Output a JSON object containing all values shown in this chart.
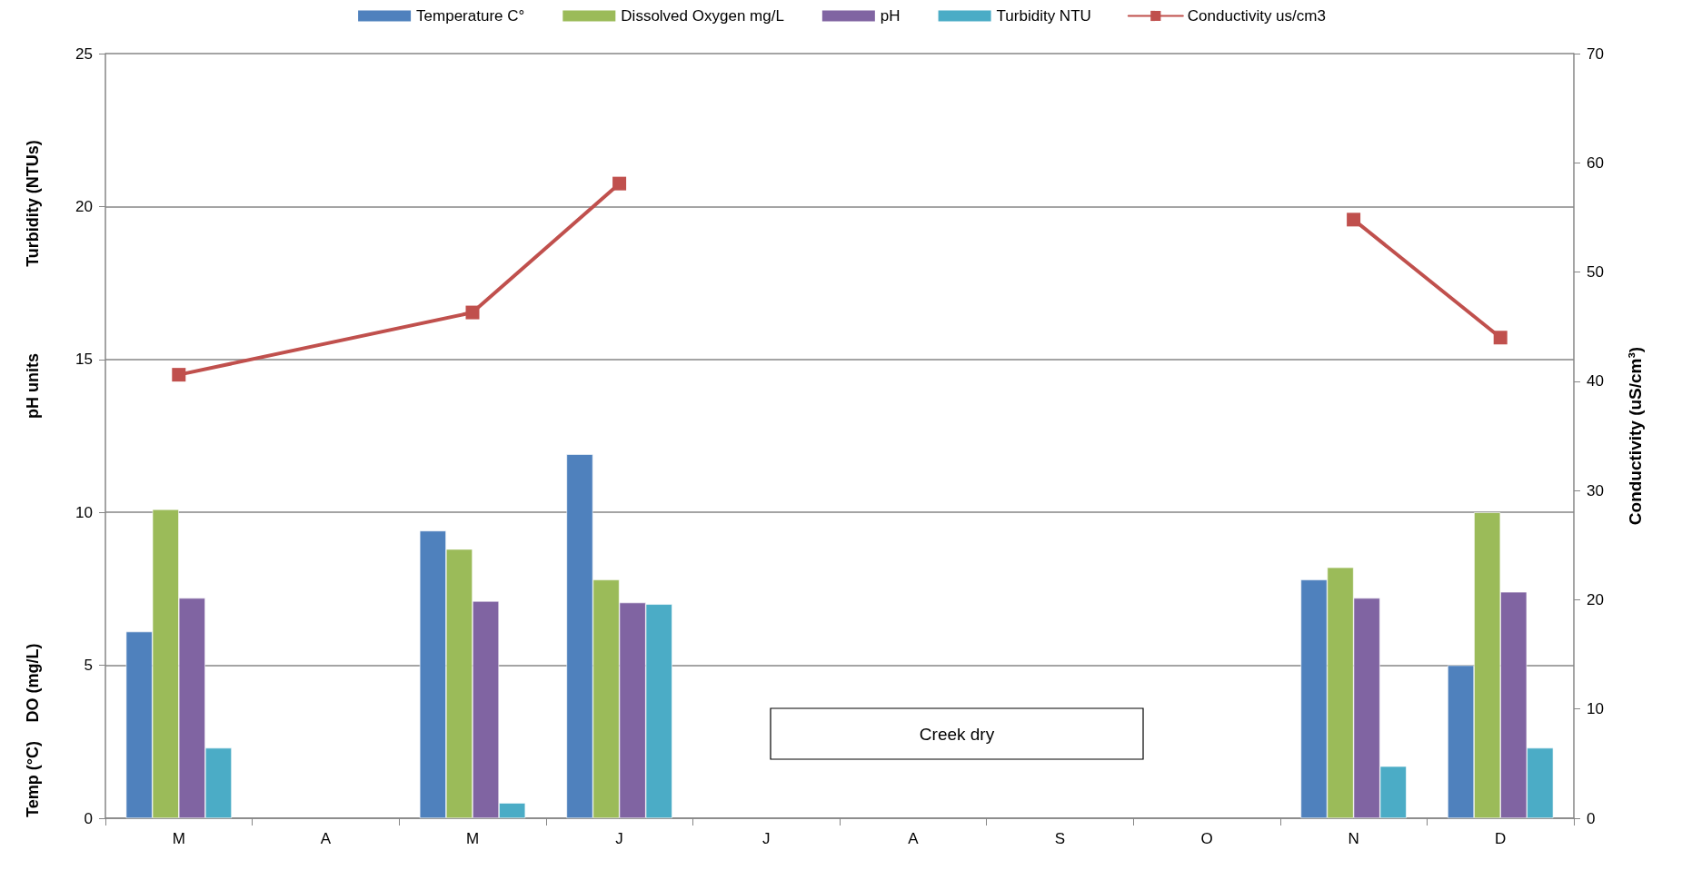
{
  "chart_data": {
    "type": "bar",
    "categories": [
      "M",
      "A",
      "M",
      "J",
      "J",
      "A",
      "S",
      "O",
      "N",
      "D"
    ],
    "series": [
      {
        "name": "Temperature C°",
        "color": "#4f81bd",
        "values": [
          6.1,
          null,
          9.4,
          11.9,
          null,
          null,
          null,
          null,
          7.8,
          5.0
        ]
      },
      {
        "name": "Dissolved Oxygen mg/L",
        "color": "#9bbb59",
        "values": [
          10.1,
          null,
          8.8,
          7.8,
          null,
          null,
          null,
          null,
          8.2,
          10.0
        ]
      },
      {
        "name": "pH",
        "color": "#8064a2",
        "values": [
          7.2,
          null,
          7.1,
          7.05,
          null,
          null,
          null,
          null,
          7.2,
          7.4
        ]
      },
      {
        "name": "Turbidity NTU",
        "color": "#4bacc6",
        "values": [
          2.3,
          null,
          0.5,
          7.0,
          null,
          null,
          null,
          null,
          1.7,
          2.3
        ]
      },
      {
        "name": "Conductivity us/cm3",
        "type": "line",
        "axis": "y2",
        "color": "#c0504d",
        "marker": "square",
        "values": [
          40.6,
          null,
          46.3,
          58.1,
          null,
          null,
          null,
          null,
          null,
          null
        ]
      },
      {
        "type": "line",
        "axis": "y2",
        "color": "#c0504d",
        "marker": "square",
        "values": [
          null,
          null,
          null,
          null,
          null,
          null,
          null,
          null,
          54.8,
          44.0
        ]
      }
    ],
    "ylim": [
      0,
      25
    ],
    "yticks": [
      0,
      5,
      10,
      15,
      20,
      25
    ],
    "y2lim": [
      0,
      70
    ],
    "y2ticks": [
      0,
      10,
      20,
      30,
      40,
      50,
      60,
      70
    ],
    "y2label": "Conductivity (uS/cm³)",
    "annotations": [
      "Temp (°C)",
      "DO (mg/L)",
      "pH units",
      "Turbidity (NTUs)",
      "Creek dry"
    ],
    "grid": "y",
    "legend": "top"
  }
}
